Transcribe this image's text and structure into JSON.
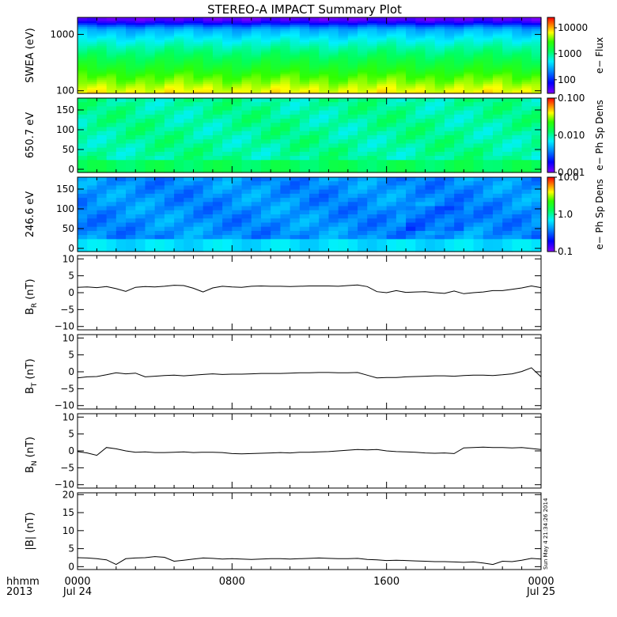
{
  "title": "STEREO-A IMPACT Summary Plot",
  "footer": {
    "corner_top": "hhmm",
    "corner_bottom": "2013",
    "timestamp": "Sun May  4 21:34:26 2014"
  },
  "colors": {
    "line": "#000000",
    "background": "#ffffff"
  },
  "chart_data": [
    {
      "type": "heatmap",
      "id": "swea",
      "ylabel": "SWEA (eV)",
      "yscale": "log",
      "ylim": [
        90,
        2000
      ],
      "ticks": [
        {
          "v": 100,
          "l": "100"
        },
        {
          "v": 1000,
          "l": "1000"
        }
      ],
      "colorbar": {
        "label": "e− Flux",
        "scale": "log",
        "range": [
          30,
          25000
        ],
        "ticks": [
          {
            "v": 100,
            "l": "100"
          },
          {
            "v": 1000,
            "l": "1000"
          },
          {
            "v": 10000,
            "l": "10000"
          }
        ]
      },
      "profile": [
        [
          2000,
          0.02
        ],
        [
          1800,
          0.05
        ],
        [
          1600,
          0.12
        ],
        [
          1400,
          0.25
        ],
        [
          1200,
          0.34
        ],
        [
          1000,
          0.38
        ],
        [
          800,
          0.43
        ],
        [
          600,
          0.49
        ],
        [
          450,
          0.54
        ],
        [
          350,
          0.58
        ],
        [
          250,
          0.63
        ],
        [
          180,
          0.69
        ],
        [
          140,
          0.73
        ],
        [
          120,
          0.76
        ],
        [
          100,
          0.79
        ],
        [
          90,
          0.81
        ]
      ]
    },
    {
      "type": "heatmap",
      "id": "pad650",
      "ylabel": "650.7 eV",
      "yscale": "linear",
      "ylim": [
        -8,
        180
      ],
      "ticks": [
        {
          "v": 0,
          "l": "0"
        },
        {
          "v": 50,
          "l": "50"
        },
        {
          "v": 100,
          "l": "100"
        },
        {
          "v": 150,
          "l": "150"
        }
      ],
      "colorbar": {
        "label": "e− Ph Sp Dens",
        "scale": "log",
        "range": [
          0.001,
          0.1
        ],
        "ticks": [
          {
            "v": 0.001,
            "l": "0.001"
          },
          {
            "v": 0.01,
            "l": "0.010"
          },
          {
            "v": 0.1,
            "l": "0.100"
          }
        ]
      },
      "base": 0.5,
      "edge": 0.56
    },
    {
      "type": "heatmap",
      "id": "pad246",
      "ylabel": "246.6 eV",
      "yscale": "linear",
      "ylim": [
        -8,
        180
      ],
      "ticks": [
        {
          "v": 0,
          "l": "0"
        },
        {
          "v": 50,
          "l": "50"
        },
        {
          "v": 100,
          "l": "100"
        },
        {
          "v": 150,
          "l": "150"
        }
      ],
      "colorbar": {
        "label": "e− Ph Sp Dens",
        "scale": "log",
        "range": [
          0.1,
          10
        ],
        "ticks": [
          {
            "v": 0.1,
            "l": "0.1"
          },
          {
            "v": 1,
            "l": "1.0"
          },
          {
            "v": 10,
            "l": "10.0"
          }
        ]
      },
      "base": 0.3,
      "edge": 0.4
    },
    {
      "type": "line",
      "id": "br",
      "ylabel": "B",
      "ylabel_sub": "R",
      "ylabel_unit": "(nT)",
      "ylim": [
        -11,
        11
      ],
      "ticks": [
        {
          "v": 10,
          "l": "10"
        },
        {
          "v": 5,
          "l": "5"
        },
        {
          "v": 0,
          "l": "0"
        },
        {
          "v": -5,
          "l": "−5"
        },
        {
          "v": -10,
          "l": "−10"
        }
      ],
      "x": [
        0,
        0.5,
        1,
        1.5,
        2,
        2.5,
        3,
        3.5,
        4,
        4.5,
        5,
        5.5,
        6,
        6.5,
        7,
        7.5,
        8,
        8.5,
        9,
        9.5,
        10,
        10.5,
        11,
        11.5,
        12,
        12.5,
        13,
        13.5,
        14,
        14.5,
        15,
        15.5,
        16,
        16.5,
        17,
        17.5,
        18,
        18.5,
        19,
        19.5,
        20,
        20.5,
        21,
        21.5,
        22,
        22.5,
        23,
        23.5,
        24
      ],
      "values": [
        1.6,
        1.7,
        1.5,
        1.8,
        1.2,
        0.4,
        1.6,
        1.8,
        1.7,
        1.9,
        2.2,
        2.1,
        1.3,
        0.2,
        1.4,
        1.9,
        1.7,
        1.6,
        1.9,
        2.0,
        1.9,
        1.9,
        1.8,
        1.9,
        2.0,
        2.0,
        2.0,
        1.9,
        2.1,
        2.3,
        1.8,
        0.3,
        0.0,
        0.6,
        0.1,
        0.2,
        0.3,
        0.0,
        -0.2,
        0.5,
        -0.3,
        0.0,
        0.2,
        0.6,
        0.6,
        1.0,
        1.4,
        2.0,
        1.5
      ]
    },
    {
      "type": "line",
      "id": "bt",
      "ylabel": "B",
      "ylabel_sub": "T",
      "ylabel_unit": "(nT)",
      "ylim": [
        -11,
        11
      ],
      "ticks": [
        {
          "v": 10,
          "l": "10"
        },
        {
          "v": 5,
          "l": "5"
        },
        {
          "v": 0,
          "l": "0"
        },
        {
          "v": -5,
          "l": "−5"
        },
        {
          "v": -10,
          "l": "−10"
        }
      ],
      "x": [
        0,
        0.5,
        1,
        1.5,
        2,
        2.5,
        3,
        3.5,
        4,
        4.5,
        5,
        5.5,
        6,
        6.5,
        7,
        7.5,
        8,
        8.5,
        9,
        9.5,
        10,
        10.5,
        11,
        11.5,
        12,
        12.5,
        13,
        13.5,
        14,
        14.5,
        15,
        15.5,
        16,
        16.5,
        17,
        17.5,
        18,
        18.5,
        19,
        19.5,
        20,
        20.5,
        21,
        21.5,
        22,
        22.5,
        23,
        23.5,
        24
      ],
      "values": [
        -1.8,
        -1.5,
        -1.4,
        -0.9,
        -0.3,
        -0.6,
        -0.4,
        -1.5,
        -1.3,
        -1.1,
        -1.0,
        -1.2,
        -1.0,
        -0.8,
        -0.6,
        -0.8,
        -0.7,
        -0.7,
        -0.6,
        -0.5,
        -0.5,
        -0.5,
        -0.4,
        -0.3,
        -0.3,
        -0.2,
        -0.2,
        -0.3,
        -0.3,
        -0.2,
        -1.0,
        -1.8,
        -1.7,
        -1.7,
        -1.5,
        -1.4,
        -1.3,
        -1.2,
        -1.2,
        -1.3,
        -1.1,
        -1.0,
        -1.0,
        -1.1,
        -0.9,
        -0.6,
        0.1,
        1.2,
        -1.5
      ]
    },
    {
      "type": "line",
      "id": "bn",
      "ylabel": "B",
      "ylabel_sub": "N",
      "ylabel_unit": "(nT)",
      "ylim": [
        -11,
        11
      ],
      "ticks": [
        {
          "v": 10,
          "l": "10"
        },
        {
          "v": 5,
          "l": "5"
        },
        {
          "v": 0,
          "l": "0"
        },
        {
          "v": -5,
          "l": "−5"
        },
        {
          "v": -10,
          "l": "−10"
        }
      ],
      "x": [
        0,
        0.5,
        1,
        1.5,
        2,
        2.5,
        3,
        3.5,
        4,
        4.5,
        5,
        5.5,
        6,
        6.5,
        7,
        7.5,
        8,
        8.5,
        9,
        9.5,
        10,
        10.5,
        11,
        11.5,
        12,
        12.5,
        13,
        13.5,
        14,
        14.5,
        15,
        15.5,
        16,
        16.5,
        17,
        17.5,
        18,
        18.5,
        19,
        19.5,
        20,
        20.5,
        21,
        21.5,
        22,
        22.5,
        23,
        23.5,
        24
      ],
      "values": [
        -0.2,
        -0.6,
        -1.3,
        1.0,
        0.6,
        0.0,
        -0.4,
        -0.3,
        -0.5,
        -0.5,
        -0.4,
        -0.3,
        -0.5,
        -0.4,
        -0.4,
        -0.5,
        -0.8,
        -0.9,
        -0.8,
        -0.7,
        -0.6,
        -0.5,
        -0.6,
        -0.4,
        -0.4,
        -0.3,
        -0.2,
        0.0,
        0.2,
        0.4,
        0.3,
        0.4,
        0.0,
        -0.2,
        -0.3,
        -0.4,
        -0.6,
        -0.7,
        -0.6,
        -0.8,
        0.9,
        1.0,
        1.1,
        1.0,
        1.0,
        0.9,
        1.0,
        0.7,
        0.4
      ]
    },
    {
      "type": "line",
      "id": "bmag",
      "ylabel": "|B| (nT)",
      "ylim": [
        -0.8,
        20.5
      ],
      "ticks": [
        {
          "v": 20,
          "l": "20"
        },
        {
          "v": 15,
          "l": "15"
        },
        {
          "v": 10,
          "l": "10"
        },
        {
          "v": 5,
          "l": "5"
        },
        {
          "v": 0,
          "l": "0"
        }
      ],
      "x": [
        0,
        0.5,
        1,
        1.5,
        2,
        2.5,
        3,
        3.5,
        4,
        4.5,
        5,
        5.5,
        6,
        6.5,
        7,
        7.5,
        8,
        8.5,
        9,
        9.5,
        10,
        10.5,
        11,
        11.5,
        12,
        12.5,
        13,
        13.5,
        14,
        14.5,
        15,
        15.5,
        16,
        16.5,
        17,
        17.5,
        18,
        18.5,
        19,
        19.5,
        20,
        20.5,
        21,
        21.5,
        22,
        22.5,
        23,
        23.5,
        24
      ],
      "values": [
        2.5,
        2.4,
        2.2,
        1.9,
        0.6,
        2.2,
        2.4,
        2.5,
        2.8,
        2.6,
        1.5,
        1.8,
        2.1,
        2.4,
        2.3,
        2.1,
        2.2,
        2.1,
        2.0,
        2.1,
        2.2,
        2.2,
        2.1,
        2.2,
        2.3,
        2.4,
        2.3,
        2.2,
        2.2,
        2.3,
        2.0,
        1.9,
        1.7,
        1.8,
        1.7,
        1.6,
        1.5,
        1.4,
        1.4,
        1.3,
        1.2,
        1.3,
        1.0,
        0.6,
        1.5,
        1.4,
        1.8,
        2.3,
        2.1
      ]
    }
  ],
  "x_axis": {
    "type": "time",
    "range_hours": [
      0,
      24
    ],
    "ticks": [
      {
        "h": 0,
        "l1": "0000",
        "l2": "Jul 24"
      },
      {
        "h": 8,
        "l1": "0800",
        "l2": ""
      },
      {
        "h": 16,
        "l1": "1600",
        "l2": ""
      },
      {
        "h": 24,
        "l1": "0000",
        "l2": "Jul 25"
      }
    ],
    "minor_step_hours": 1
  }
}
